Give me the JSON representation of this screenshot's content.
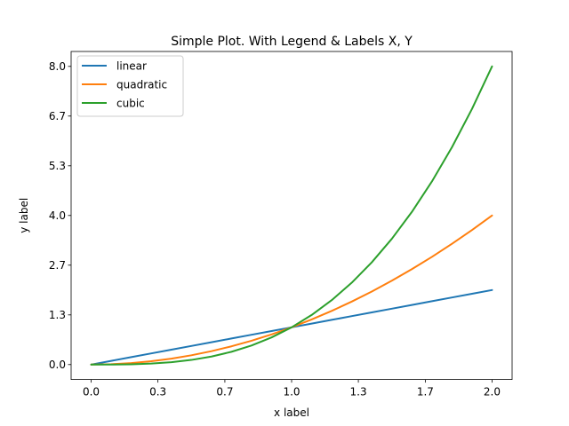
{
  "chart_data": {
    "type": "line",
    "title": "Simple Plot. With Legend & Labels X, Y",
    "xlabel": "x label",
    "ylabel": "y label",
    "xlim": [
      -0.1,
      2.1
    ],
    "ylim": [
      -0.4,
      8.4
    ],
    "x_ticks": [
      0.0,
      0.333,
      0.667,
      1.0,
      1.333,
      1.667,
      2.0
    ],
    "x_tick_labels": [
      "0.0",
      "0.3",
      "0.7",
      "1.0",
      "1.3",
      "1.7",
      "2.0"
    ],
    "y_ticks": [
      0.0,
      1.333,
      2.667,
      4.0,
      5.333,
      6.667,
      8.0
    ],
    "y_tick_labels": [
      "0.0",
      "1.3",
      "2.7",
      "4.0",
      "5.3",
      "6.7",
      "8.0"
    ],
    "grid": false,
    "legend_position": "top-left",
    "x": [
      0.0,
      0.1,
      0.2,
      0.3,
      0.4,
      0.5,
      0.6,
      0.7,
      0.8,
      0.9,
      1.0,
      1.1,
      1.2,
      1.3,
      1.4,
      1.5,
      1.6,
      1.7,
      1.8,
      1.9,
      2.0
    ],
    "series": [
      {
        "name": "linear",
        "color": "#1f77b4",
        "values": [
          0.0,
          0.1,
          0.2,
          0.3,
          0.4,
          0.5,
          0.6,
          0.7,
          0.8,
          0.9,
          1.0,
          1.1,
          1.2,
          1.3,
          1.4,
          1.5,
          1.6,
          1.7,
          1.8,
          1.9,
          2.0
        ]
      },
      {
        "name": "quadratic",
        "color": "#ff7f0e",
        "values": [
          0.0,
          0.01,
          0.04,
          0.09,
          0.16,
          0.25,
          0.36,
          0.49,
          0.64,
          0.81,
          1.0,
          1.21,
          1.44,
          1.69,
          1.96,
          2.25,
          2.56,
          2.89,
          3.24,
          3.61,
          4.0
        ]
      },
      {
        "name": "cubic",
        "color": "#2ca02c",
        "values": [
          0.0,
          0.001,
          0.008,
          0.027,
          0.064,
          0.125,
          0.216,
          0.343,
          0.512,
          0.729,
          1.0,
          1.331,
          1.728,
          2.197,
          2.744,
          3.375,
          4.096,
          4.913,
          5.832,
          6.859,
          8.0
        ]
      }
    ]
  }
}
